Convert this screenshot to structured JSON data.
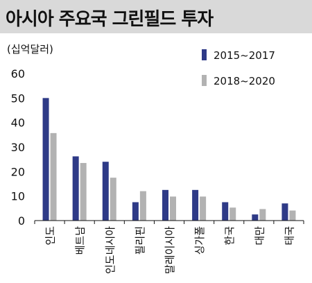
{
  "header": {
    "title": "아시아 주요국 그린필드 투자",
    "unit": "(십억달러)"
  },
  "chart_data": {
    "type": "bar",
    "title": "아시아 주요국 그린필드 투자",
    "ylabel": "(십억달러)",
    "ylim": [
      0,
      60
    ],
    "yticks": [
      0,
      10,
      20,
      30,
      40,
      50,
      60
    ],
    "grid": false,
    "legend_position": "top-right",
    "categories": [
      "인도",
      "베트남",
      "인도네시아",
      "필리핀",
      "말레이시아",
      "싱가폴",
      "한국",
      "대만",
      "태국"
    ],
    "series": [
      {
        "name": "2015~2017",
        "color": "#2e3a87",
        "values": [
          50,
          26.2,
          24,
          7.5,
          12.5,
          12.5,
          7.5,
          2.5,
          7
        ]
      },
      {
        "name": "2018~2020",
        "color": "#b2b2b2",
        "values": [
          35.7,
          23.5,
          17.5,
          12,
          9.8,
          9.8,
          5.3,
          4.7,
          4.1
        ]
      }
    ]
  }
}
